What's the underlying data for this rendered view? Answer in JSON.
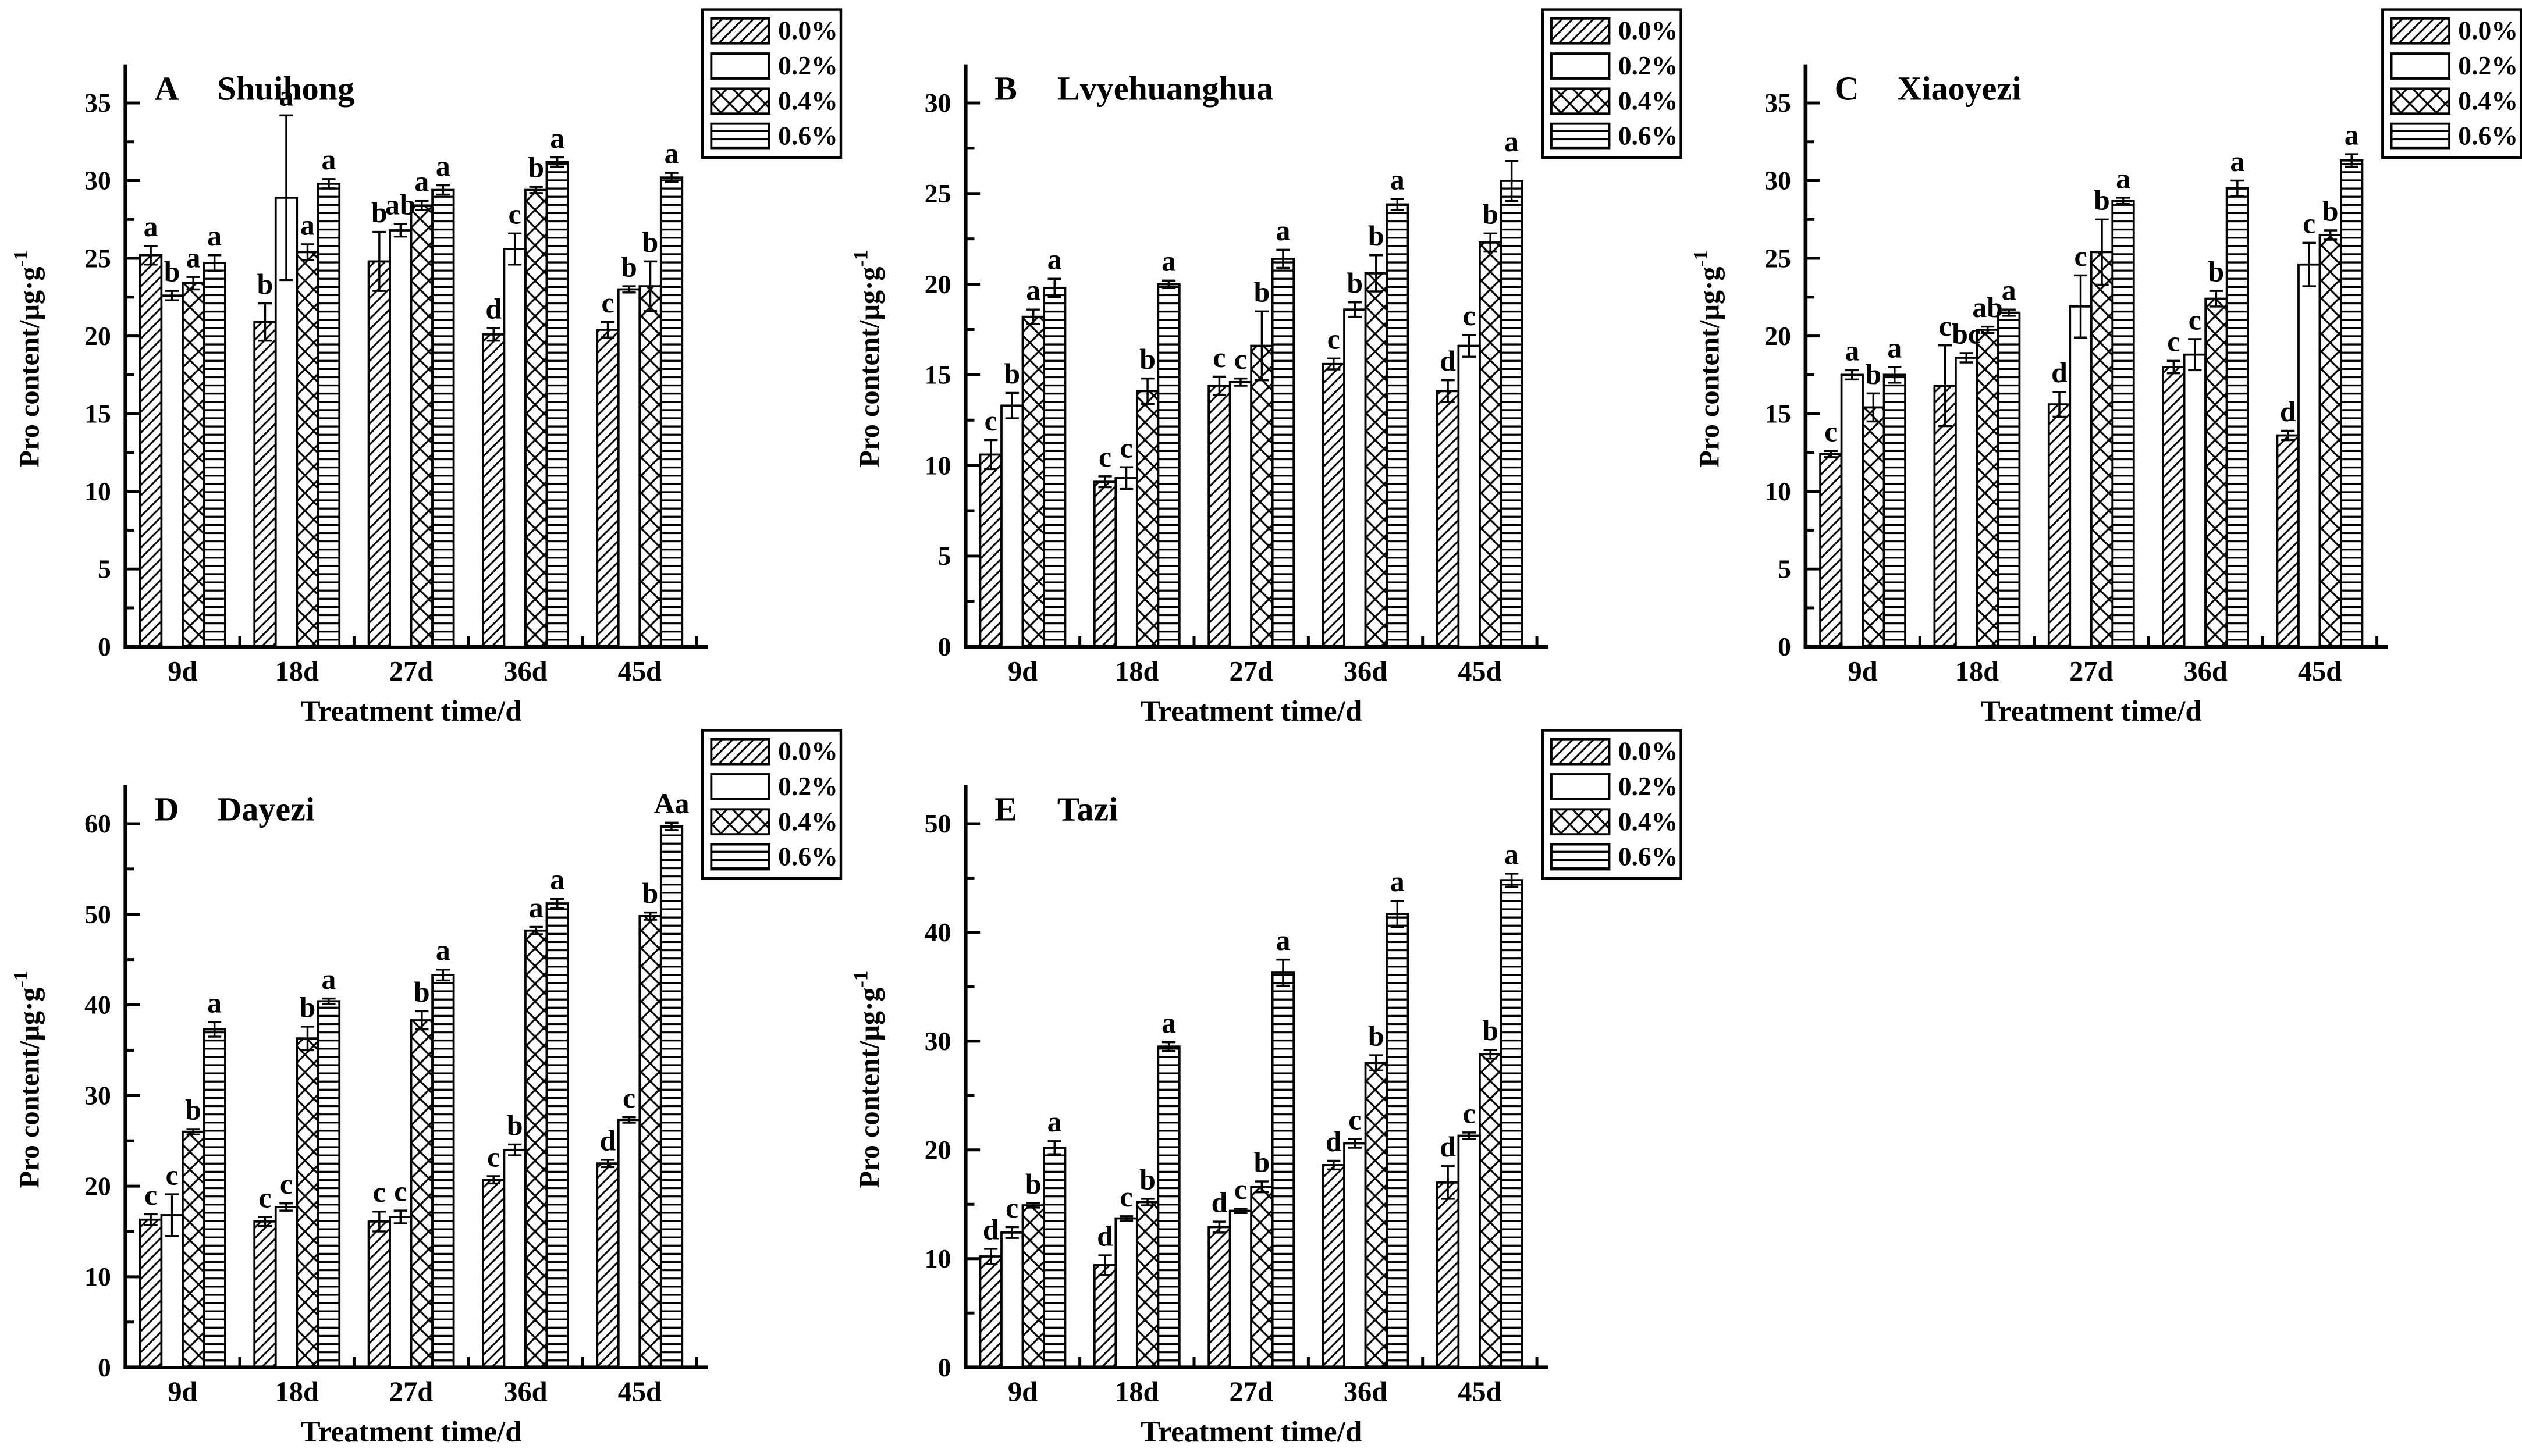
{
  "figure": {
    "background": "#ffffff",
    "ink_color": "#000000",
    "xlabel": "Treatment time/d",
    "ylabel_base": "Pro content/μg·g",
    "ylabel_sup": "-1",
    "legend": {
      "labels": [
        "0.0%",
        "0.2%",
        "0.4%",
        "0.6%"
      ],
      "patterns": [
        "diagonal-hatch",
        "plain-white",
        "crosshatch",
        "horizontal-lines"
      ]
    }
  },
  "chart_data": [
    {
      "type": "bar",
      "panel_letter": "A",
      "title": "Shuihong",
      "xlabel": "Treatment time/d",
      "ylabel": "Pro content/μg·g-1",
      "ylim": [
        0,
        35
      ],
      "ytick_step": 5,
      "categories": [
        "9d",
        "18d",
        "27d",
        "36d",
        "45d"
      ],
      "series": [
        {
          "name": "0.0%",
          "pattern": "diagonal-hatch",
          "values": [
            25.2,
            20.9,
            24.8,
            20.1,
            20.4
          ],
          "errors": [
            0.6,
            1.2,
            1.9,
            0.4,
            0.5
          ],
          "letters": [
            "a",
            "b",
            "b",
            "d",
            "c"
          ]
        },
        {
          "name": "0.2%",
          "pattern": "plain-white",
          "values": [
            22.6,
            28.9,
            26.8,
            25.6,
            23.0
          ],
          "errors": [
            0.3,
            5.3,
            0.4,
            1.0,
            0.2
          ],
          "letters": [
            "b",
            "a",
            "ab",
            "c",
            "b"
          ]
        },
        {
          "name": "0.4%",
          "pattern": "crosshatch",
          "values": [
            23.4,
            25.4,
            28.4,
            29.4,
            23.2
          ],
          "errors": [
            0.4,
            0.5,
            0.3,
            0.2,
            1.6
          ],
          "letters": [
            "a",
            "a",
            "a",
            "b",
            "b"
          ]
        },
        {
          "name": "0.6%",
          "pattern": "horizontal-lines",
          "values": [
            24.7,
            29.8,
            29.4,
            31.2,
            30.2
          ],
          "errors": [
            0.5,
            0.3,
            0.3,
            0.3,
            0.3
          ],
          "letters": [
            "a",
            "a",
            "a",
            "a",
            "a"
          ]
        }
      ]
    },
    {
      "type": "bar",
      "panel_letter": "B",
      "title": "Lvyehuanghua",
      "xlabel": "Treatment time/d",
      "ylabel": "Pro content/μg·g-1",
      "ylim": [
        0,
        30
      ],
      "ytick_step": 5,
      "categories": [
        "9d",
        "18d",
        "27d",
        "36d",
        "45d"
      ],
      "series": [
        {
          "name": "0.0%",
          "pattern": "diagonal-hatch",
          "values": [
            10.6,
            9.1,
            14.4,
            15.6,
            14.1
          ],
          "errors": [
            0.8,
            0.3,
            0.5,
            0.3,
            0.6
          ],
          "letters": [
            "c",
            "c",
            "c",
            "c",
            "d"
          ]
        },
        {
          "name": "0.2%",
          "pattern": "plain-white",
          "values": [
            13.3,
            9.3,
            14.6,
            18.6,
            16.6
          ],
          "errors": [
            0.7,
            0.6,
            0.2,
            0.4,
            0.6
          ],
          "letters": [
            "b",
            "c",
            "c",
            "b",
            "c"
          ]
        },
        {
          "name": "0.4%",
          "pattern": "crosshatch",
          "values": [
            18.2,
            14.1,
            16.6,
            20.6,
            22.3
          ],
          "errors": [
            0.4,
            0.7,
            1.9,
            1.0,
            0.5
          ],
          "letters": [
            "a",
            "b",
            "b",
            "b",
            "b"
          ]
        },
        {
          "name": "0.6%",
          "pattern": "horizontal-lines",
          "values": [
            19.8,
            20.0,
            21.4,
            24.4,
            25.7
          ],
          "errors": [
            0.5,
            0.2,
            0.5,
            0.3,
            1.1
          ],
          "letters": [
            "a",
            "a",
            "a",
            "a",
            "a"
          ]
        }
      ]
    },
    {
      "type": "bar",
      "panel_letter": "C",
      "title": "Xiaoyezi",
      "xlabel": "Treatment time/d",
      "ylabel": "Pro content/μg·g-1",
      "ylim": [
        0,
        35
      ],
      "ytick_step": 5,
      "categories": [
        "9d",
        "18d",
        "27d",
        "36d",
        "45d"
      ],
      "series": [
        {
          "name": "0.0%",
          "pattern": "diagonal-hatch",
          "values": [
            12.4,
            16.8,
            15.6,
            18.0,
            13.6
          ],
          "errors": [
            0.2,
            2.6,
            0.8,
            0.4,
            0.3
          ],
          "letters": [
            "c",
            "c",
            "d",
            "c",
            "d"
          ]
        },
        {
          "name": "0.2%",
          "pattern": "plain-white",
          "values": [
            17.5,
            18.6,
            21.9,
            18.8,
            24.6
          ],
          "errors": [
            0.3,
            0.3,
            2.0,
            1.0,
            1.4
          ],
          "letters": [
            "a",
            "bc",
            "c",
            "c",
            "c"
          ]
        },
        {
          "name": "0.4%",
          "pattern": "crosshatch",
          "values": [
            15.4,
            20.4,
            25.4,
            22.4,
            26.5
          ],
          "errors": [
            0.9,
            0.2,
            2.1,
            0.5,
            0.3
          ],
          "letters": [
            "b",
            "ab",
            "b",
            "b",
            "b"
          ]
        },
        {
          "name": "0.6%",
          "pattern": "horizontal-lines",
          "values": [
            17.5,
            21.5,
            28.7,
            29.5,
            31.3
          ],
          "errors": [
            0.5,
            0.2,
            0.2,
            0.5,
            0.4
          ],
          "letters": [
            "a",
            "a",
            "a",
            "a",
            "a"
          ]
        }
      ]
    },
    {
      "type": "bar",
      "panel_letter": "D",
      "title": "Dayezi",
      "xlabel": "Treatment time/d",
      "ylabel": "Pro content/μg·g-1",
      "ylim": [
        0,
        60
      ],
      "ytick_step": 10,
      "categories": [
        "9d",
        "18d",
        "27d",
        "36d",
        "45d"
      ],
      "series": [
        {
          "name": "0.0%",
          "pattern": "diagonal-hatch",
          "values": [
            16.3,
            16.1,
            16.1,
            20.7,
            22.5
          ],
          "errors": [
            0.6,
            0.5,
            1.1,
            0.4,
            0.4
          ],
          "letters": [
            "c",
            "c",
            "c",
            "c",
            "d"
          ]
        },
        {
          "name": "0.2%",
          "pattern": "plain-white",
          "values": [
            16.8,
            17.7,
            16.6,
            24.0,
            27.3
          ],
          "errors": [
            2.3,
            0.4,
            0.7,
            0.6,
            0.3
          ],
          "letters": [
            "c",
            "c",
            "c",
            "b",
            "c"
          ]
        },
        {
          "name": "0.4%",
          "pattern": "crosshatch",
          "values": [
            26.0,
            36.3,
            38.3,
            48.2,
            49.8
          ],
          "errors": [
            0.3,
            1.3,
            1.0,
            0.4,
            0.4
          ],
          "letters": [
            "b",
            "b",
            "b",
            "a",
            "b"
          ]
        },
        {
          "name": "0.6%",
          "pattern": "horizontal-lines",
          "values": [
            37.3,
            40.4,
            43.3,
            51.2,
            59.7
          ],
          "errors": [
            0.8,
            0.3,
            0.6,
            0.5,
            0.4
          ],
          "letters": [
            "a",
            "a",
            "a",
            "a",
            "Aa"
          ]
        }
      ]
    },
    {
      "type": "bar",
      "panel_letter": "E",
      "title": "Tazi",
      "xlabel": "Treatment time/d",
      "ylabel": "Pro content/μg·g-1",
      "ylim": [
        0,
        50
      ],
      "ytick_step": 10,
      "categories": [
        "9d",
        "18d",
        "27d",
        "36d",
        "45d"
      ],
      "series": [
        {
          "name": "0.0%",
          "pattern": "diagonal-hatch",
          "values": [
            10.2,
            9.4,
            12.9,
            18.6,
            17.0
          ],
          "errors": [
            0.7,
            0.9,
            0.5,
            0.4,
            1.5
          ],
          "letters": [
            "d",
            "d",
            "d",
            "d",
            "d"
          ]
        },
        {
          "name": "0.2%",
          "pattern": "plain-white",
          "values": [
            12.4,
            13.7,
            14.4,
            20.6,
            21.3
          ],
          "errors": [
            0.5,
            0.2,
            0.2,
            0.4,
            0.3
          ],
          "letters": [
            "c",
            "c",
            "c",
            "c",
            "c"
          ]
        },
        {
          "name": "0.4%",
          "pattern": "crosshatch",
          "values": [
            14.9,
            15.2,
            16.6,
            28.0,
            28.8
          ],
          "errors": [
            0.2,
            0.3,
            0.5,
            0.7,
            0.4
          ],
          "letters": [
            "b",
            "b",
            "b",
            "b",
            "b"
          ]
        },
        {
          "name": "0.6%",
          "pattern": "horizontal-lines",
          "values": [
            20.2,
            29.5,
            36.3,
            41.7,
            44.8
          ],
          "errors": [
            0.6,
            0.4,
            1.2,
            1.2,
            0.6
          ],
          "letters": [
            "a",
            "a",
            "a",
            "a",
            "a"
          ]
        }
      ]
    }
  ]
}
